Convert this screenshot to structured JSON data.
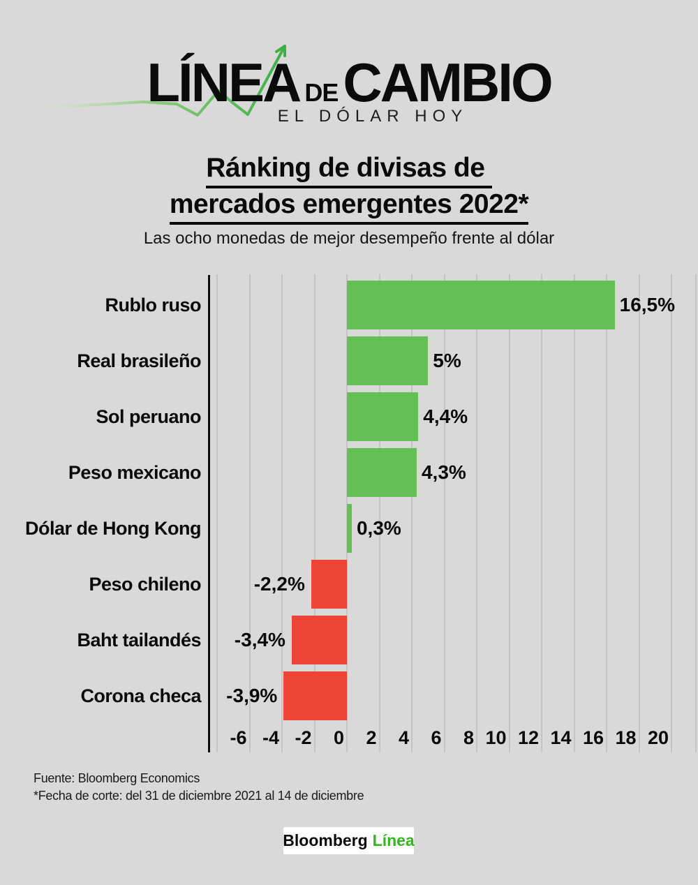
{
  "header": {
    "logo_part1": "LÍNEA",
    "logo_part2": "DE",
    "logo_part3": "CAMBIO",
    "logo_subtitle": "EL DÓLAR HOY"
  },
  "title": {
    "line1": "Ránking de divisas de ",
    "line2": "mercados emergentes 2022*",
    "subtitle": "Las ocho monedas de mejor desempeño frente al dólar"
  },
  "chart_data": {
    "type": "bar",
    "orientation": "horizontal",
    "categories": [
      "Rublo ruso",
      "Real brasileño",
      "Sol peruano",
      "Peso mexicano",
      "Dólar de Hong Kong",
      "Peso chileno",
      "Baht tailandés",
      "Corona checa"
    ],
    "values": [
      16.5,
      5,
      4.4,
      4.3,
      0.3,
      -2.2,
      -3.4,
      -3.9
    ],
    "value_labels": [
      "16,5%",
      "5%",
      "4,4%",
      "4,3%",
      "0,3%",
      "-2,2%",
      "-3,4%",
      "-3,9%"
    ],
    "x_ticks": [
      -6,
      -4,
      -2,
      0,
      2,
      4,
      6,
      8,
      10,
      12,
      14,
      16,
      18,
      20
    ],
    "xlim": [
      -8.5,
      21.5
    ],
    "grid": true,
    "legend": false,
    "positive_color": "#64c055",
    "negative_color": "#ee4337",
    "gridline_color": "#c4c4c4",
    "axis_color": "#0b0b0b",
    "background_color": "#d9d9d9"
  },
  "footer": {
    "source": "Fuente: Bloomberg Economics",
    "note": "*Fecha de corte: del 31 de diciembre 2021 al 14 de diciembre",
    "brand_black": "Bloomberg",
    "brand_green": "Línea",
    "brand_green_color": "#34b71e",
    "trend_line_color": "#3fae49"
  }
}
